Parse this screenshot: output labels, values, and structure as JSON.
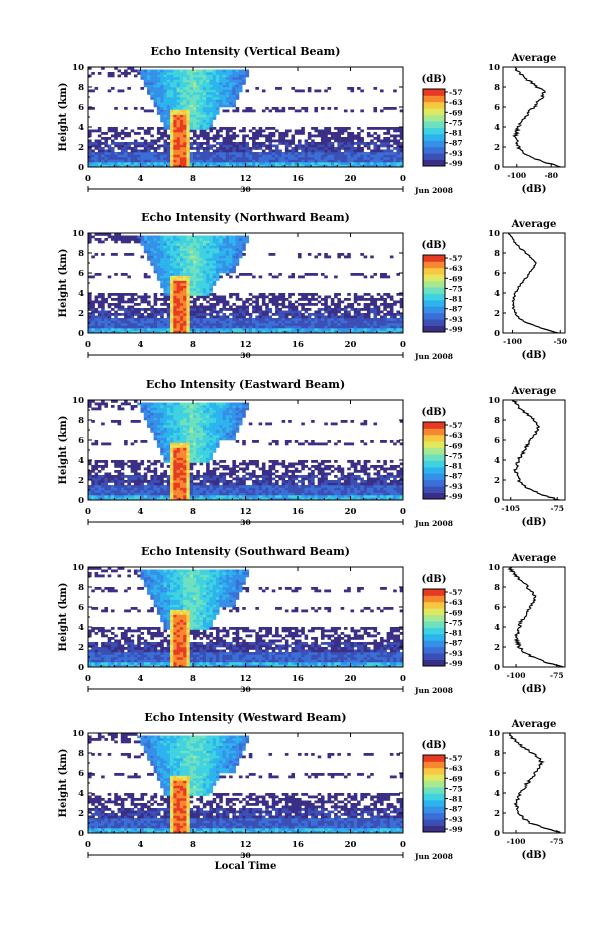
{
  "colors": {
    "scale": [
      "#3a2f86",
      "#3b4fb5",
      "#3a6fd8",
      "#3690e8",
      "#2db4ee",
      "#3fd2e0",
      "#6ee0c0",
      "#a8e890",
      "#e0e860",
      "#f8c840",
      "#f88830",
      "#e83a22"
    ]
  },
  "chart_data": [
    {
      "type": "heatmap",
      "panel": "vertical",
      "title": "Echo Intensity (Vertical Beam)",
      "ylabel": "Height (km)",
      "xlabel": "",
      "xlim": [
        0,
        24
      ],
      "ylim": [
        0,
        10
      ],
      "xticks": [
        "0",
        "4",
        "8",
        "12",
        "16",
        "20",
        "0"
      ],
      "yticks": [
        "0",
        "2",
        "4",
        "6",
        "8",
        "10"
      ],
      "date_label": "30",
      "date_suffix": "Jun 2008",
      "colorbar": {
        "label": "(dB)",
        "ticks": [
          "-57",
          "-63",
          "-69",
          "-75",
          "-81",
          "-87",
          "-93",
          "-99"
        ]
      },
      "avg_panel": {
        "title": "Average",
        "xlabel": "(dB)",
        "xticks": [
          "-100",
          "-80"
        ],
        "xlim": [
          -108,
          -72
        ],
        "heights": [
          0,
          0.5,
          1,
          1.5,
          2,
          2.5,
          3,
          3.5,
          4,
          4.5,
          5,
          5.5,
          6,
          6.5,
          7,
          7.5,
          8,
          8.5,
          9,
          9.5,
          10
        ],
        "values": [
          -74,
          -84,
          -92,
          -97,
          -99,
          -100,
          -101,
          -100,
          -99,
          -98,
          -95,
          -93,
          -90,
          -88,
          -85,
          -84,
          -88,
          -92,
          -96,
          -99,
          -101
        ]
      }
    },
    {
      "type": "heatmap",
      "panel": "northward",
      "title": "Echo Intensity (Northward Beam)",
      "ylabel": "Height (km)",
      "xlabel": "",
      "xlim": [
        0,
        24
      ],
      "ylim": [
        0,
        10
      ],
      "xticks": [
        "0",
        "4",
        "8",
        "12",
        "16",
        "20",
        "0"
      ],
      "yticks": [
        "0",
        "2",
        "4",
        "6",
        "8",
        "10"
      ],
      "date_label": "30",
      "date_suffix": "Jun 2008",
      "colorbar": {
        "label": "(dB)",
        "ticks": [
          "-57",
          "-63",
          "-69",
          "-75",
          "-81",
          "-87",
          "-93",
          "-99"
        ]
      },
      "avg_panel": {
        "title": "Average",
        "xlabel": "(dB)",
        "xticks": [
          "-100",
          "-50"
        ],
        "xlim": [
          -110,
          -45
        ],
        "heights": [
          0,
          0.5,
          1,
          1.5,
          2,
          2.5,
          3,
          3.5,
          4,
          4.5,
          5,
          5.5,
          6,
          6.5,
          7,
          7.5,
          8,
          8.5,
          9,
          9.5,
          10
        ],
        "values": [
          -52,
          -70,
          -85,
          -93,
          -97,
          -99,
          -100,
          -99,
          -97,
          -94,
          -90,
          -86,
          -82,
          -78,
          -75,
          -80,
          -86,
          -92,
          -97,
          -101,
          -104
        ]
      }
    },
    {
      "type": "heatmap",
      "panel": "eastward",
      "title": "Echo Intensity (Eastward Beam)",
      "ylabel": "Height (km)",
      "xlabel": "",
      "xlim": [
        0,
        24
      ],
      "ylim": [
        0,
        10
      ],
      "xticks": [
        "0",
        "4",
        "8",
        "12",
        "16",
        "20",
        "0"
      ],
      "yticks": [
        "0",
        "2",
        "4",
        "6",
        "8",
        "10"
      ],
      "date_label": "30",
      "date_suffix": "Jun 2008",
      "colorbar": {
        "label": "(dB)",
        "ticks": [
          "-57",
          "-63",
          "-69",
          "-75",
          "-81",
          "-87",
          "-93",
          "-99"
        ]
      },
      "avg_panel": {
        "title": "Average",
        "xlabel": "(dB)",
        "xticks": [
          "-105",
          "-75"
        ],
        "xlim": [
          -110,
          -70
        ],
        "heights": [
          0,
          0.5,
          1,
          1.5,
          2,
          2.5,
          3,
          3.5,
          4,
          4.5,
          5,
          5.5,
          6,
          6.5,
          7,
          7.5,
          8,
          8.5,
          9,
          9.5,
          10
        ],
        "values": [
          -74,
          -84,
          -92,
          -97,
          -100,
          -101,
          -102,
          -101,
          -100,
          -98,
          -96,
          -94,
          -92,
          -90,
          -88,
          -87,
          -90,
          -94,
          -98,
          -101,
          -103
        ]
      }
    },
    {
      "type": "heatmap",
      "panel": "southward",
      "title": "Echo Intensity (Southward Beam)",
      "ylabel": "Height (km)",
      "xlabel": "",
      "xlim": [
        0,
        24
      ],
      "ylim": [
        0,
        10
      ],
      "xticks": [
        "0",
        "4",
        "8",
        "12",
        "16",
        "20",
        "0"
      ],
      "yticks": [
        "0",
        "2",
        "4",
        "6",
        "8",
        "10"
      ],
      "date_label": "30",
      "date_suffix": "Jun 2008",
      "colorbar": {
        "label": "(dB)",
        "ticks": [
          "-57",
          "-63",
          "-69",
          "-75",
          "-81",
          "-87",
          "-93",
          "-99"
        ]
      },
      "avg_panel": {
        "title": "Average",
        "xlabel": "(dB)",
        "xticks": [
          "-100",
          "-75"
        ],
        "xlim": [
          -108,
          -70
        ],
        "heights": [
          0,
          0.5,
          1,
          1.5,
          2,
          2.5,
          3,
          3.5,
          4,
          4.5,
          5,
          5.5,
          6,
          6.5,
          7,
          7.5,
          8,
          8.5,
          9,
          9.5,
          10
        ],
        "values": [
          -72,
          -82,
          -90,
          -95,
          -98,
          -99,
          -100,
          -99,
          -98,
          -97,
          -95,
          -93,
          -91,
          -89,
          -88,
          -90,
          -93,
          -96,
          -99,
          -102,
          -104
        ]
      }
    },
    {
      "type": "heatmap",
      "panel": "westward",
      "title": "Echo Intensity (Westward Beam)",
      "ylabel": "Height (km)",
      "xlabel": "Local Time",
      "xlim": [
        0,
        24
      ],
      "ylim": [
        0,
        10
      ],
      "xticks": [
        "0",
        "4",
        "8",
        "12",
        "16",
        "20",
        "0"
      ],
      "yticks": [
        "0",
        "2",
        "4",
        "6",
        "8",
        "10"
      ],
      "date_label": "30",
      "date_suffix": "Jun 2008",
      "colorbar": {
        "label": "(dB)",
        "ticks": [
          "-57",
          "-63",
          "-69",
          "-75",
          "-81",
          "-87",
          "-93",
          "-99"
        ]
      },
      "avg_panel": {
        "title": "Average",
        "xlabel": "(dB)",
        "xticks": [
          "-100",
          "-75"
        ],
        "xlim": [
          -108,
          -70
        ],
        "heights": [
          0,
          0.5,
          1,
          1.5,
          2,
          2.5,
          3,
          3.5,
          4,
          4.5,
          5,
          5.5,
          6,
          6.5,
          7,
          7.5,
          8,
          8.5,
          9,
          9.5,
          10
        ],
        "values": [
          -72,
          -82,
          -91,
          -96,
          -98,
          -99,
          -100,
          -99,
          -97,
          -95,
          -93,
          -90,
          -88,
          -86,
          -84,
          -86,
          -90,
          -95,
          -99,
          -102,
          -104
        ]
      }
    }
  ]
}
